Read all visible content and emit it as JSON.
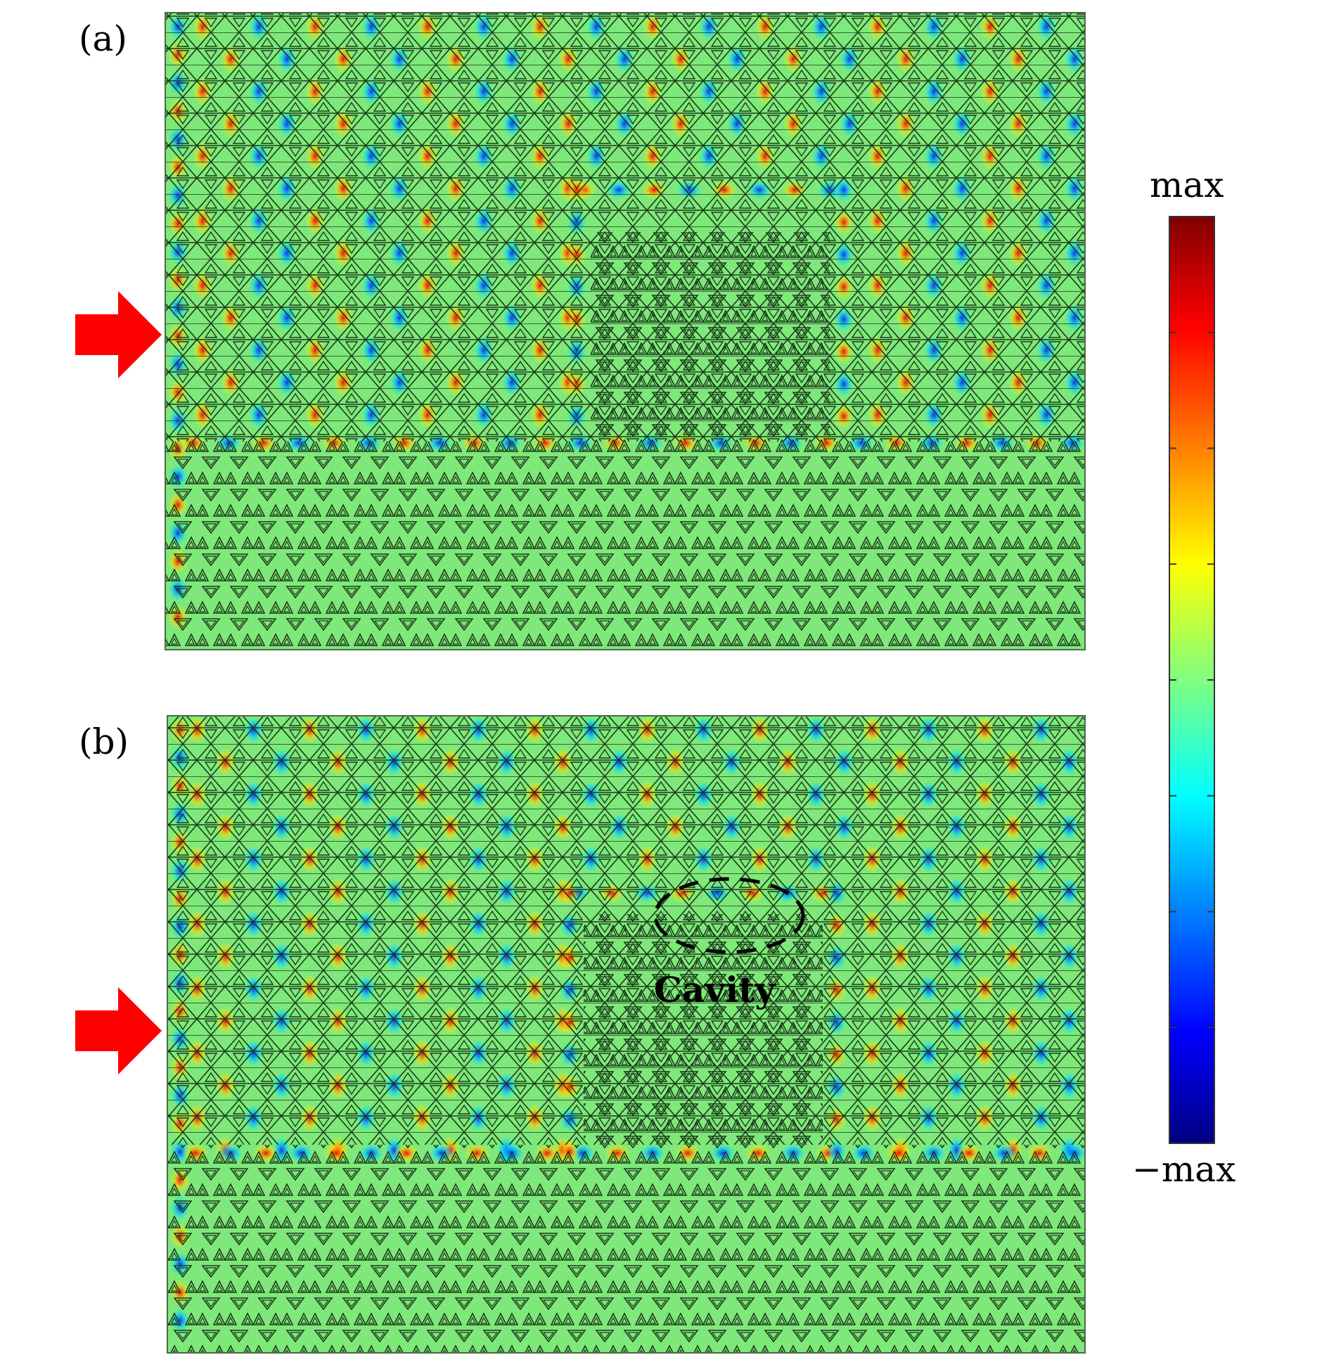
{
  "panels": [
    {
      "id": "a",
      "label": "(a)"
    },
    {
      "id": "b",
      "label": "(b)",
      "annotation": "Cavity"
    }
  ],
  "colorbar": {
    "top_label": "max",
    "bottom_label": "−max",
    "colors": [
      "#800000",
      "#ff0000",
      "#ff8000",
      "#ffff00",
      "#80ff80",
      "#00ffff",
      "#0080ff",
      "#0000ff",
      "#000080"
    ]
  },
  "arrow_color": "#ff0000",
  "background_field_color": "#7fe87a"
}
